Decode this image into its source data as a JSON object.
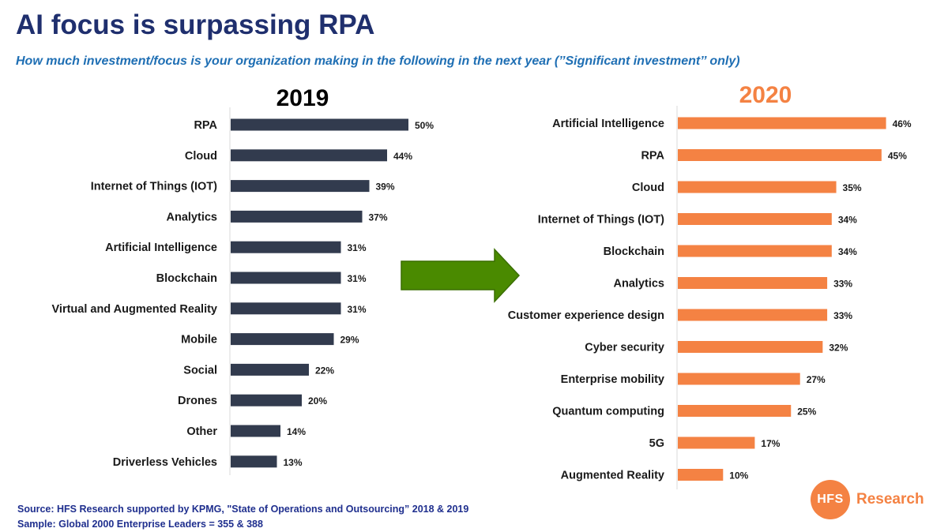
{
  "header": {
    "title": "AI focus is surpassing RPA",
    "subtitle": "How much investment/focus is your organization making in the following in the next year (’’Significant investment’’ only)"
  },
  "chart_data": [
    {
      "type": "bar",
      "orientation": "horizontal",
      "title": "2019",
      "color": "#323b4e",
      "value_suffix": "%",
      "categories": [
        "RPA",
        "Cloud",
        "Internet of Things (IOT)",
        "Analytics",
        "Artificial Intelligence",
        "Blockchain",
        "Virtual and Augmented Reality",
        "Mobile",
        "Social",
        "Drones",
        "Other",
        "Driverless Vehicles"
      ],
      "values": [
        50,
        44,
        39,
        37,
        31,
        31,
        31,
        29,
        22,
        20,
        14,
        13
      ]
    },
    {
      "type": "bar",
      "orientation": "horizontal",
      "title": "2020",
      "color": "#f48243",
      "value_suffix": "%",
      "categories": [
        "Artificial Intelligence",
        "RPA",
        "Cloud",
        "Internet of Things (IOT)",
        "Blockchain",
        "Analytics",
        "Customer experience design",
        "Cyber security",
        "Enterprise mobility",
        "Quantum computing",
        "5G",
        "Augmented Reality"
      ],
      "values": [
        46,
        45,
        35,
        34,
        34,
        33,
        33,
        32,
        27,
        25,
        17,
        10
      ]
    }
  ],
  "arrow": {
    "icon": "right-arrow-icon",
    "color": "#4a8a00"
  },
  "footer": {
    "source": "Source: HFS Research supported by KPMG, \"State of Operations and Outsourcing” 2018 & 2019",
    "sample": "Sample: Global 2000 Enterprise Leaders = 355 & 388"
  },
  "brand": {
    "logo_text": "HFS",
    "name": "Research"
  }
}
